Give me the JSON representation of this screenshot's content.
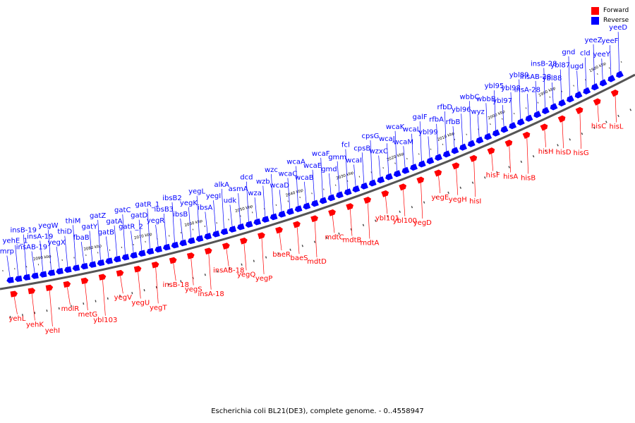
{
  "caption": "Escherichia coli BL21(DE3), complete genome. - 0..4558947",
  "legend": [
    {
      "label": "Forward",
      "color": "#ff0000"
    },
    {
      "label": "Reverse",
      "color": "#0000ff"
    }
  ],
  "colors": {
    "forward": "#ff0000",
    "reverse": "#0000ff",
    "backbone": "#555555"
  },
  "ticks": [
    "2090 kbp",
    "2080 kbp",
    "2070 kbp",
    "2060 kbp",
    "2050 kbp",
    "2040 kbp",
    "2030 kbp",
    "2020 kbp",
    "2010 kbp",
    "2000 kbp",
    "1990 kbp",
    "1980 kbp"
  ],
  "reverse_genes": [
    "mrp",
    "yehE_1",
    "insB-19",
    "insAB-19",
    "insA-19",
    "yegW",
    "yegX",
    "thiD",
    "thiM",
    "fbaB",
    "gatY",
    "gatZ",
    "gatB",
    "gatA",
    "gatC",
    "gatR_2",
    "gatD",
    "gatR_1",
    "yegR",
    "ibsB3",
    "ibsB2",
    "ibsB",
    "yegK",
    "yegL",
    "ibsA",
    "yegI",
    "alkA",
    "udk",
    "asmA",
    "dcd",
    "wza",
    "wzb",
    "wzc",
    "wcaD",
    "wcaC",
    "wcaA",
    "wcaB",
    "wcaE",
    "wcaF",
    "gmd",
    "gmm",
    "fcl",
    "wcaI",
    "cpsB",
    "cpsG",
    "wzxC",
    "wcaJ",
    "wcaK",
    "wcaM",
    "wcaL",
    "galF",
    "ybl99",
    "rfbA",
    "rfbD",
    "rfbB",
    "ybl96",
    "wbbC",
    "wyz",
    "wbbB",
    "ybl95",
    "ybl97",
    "ybl98",
    "ybl89",
    "insA-28",
    "insAB-28",
    "insB-28",
    "ybl88",
    "ybl87",
    "gnd",
    "ugd",
    "cld",
    "yeeZ",
    "yeeY",
    "yeeF",
    "yeeD"
  ],
  "forward_genes": [
    "yehL",
    "yehK",
    "yehI",
    "molR",
    "metG",
    "ybl103",
    "yegV",
    "yegU",
    "yegT",
    "insB-18",
    "yegS",
    "insA-18",
    "insAB-18",
    "yegQ",
    "yegP",
    "baeR",
    "baeS",
    "mdtD",
    "mdtC",
    "mdtB",
    "mdtA",
    "ybl101",
    "ybl100",
    "yegD",
    "yegE",
    "yegH",
    "hisI",
    "hisF",
    "hisA",
    "hisB",
    "hisH",
    "hisD",
    "hisG",
    "hisC",
    "hisL"
  ]
}
